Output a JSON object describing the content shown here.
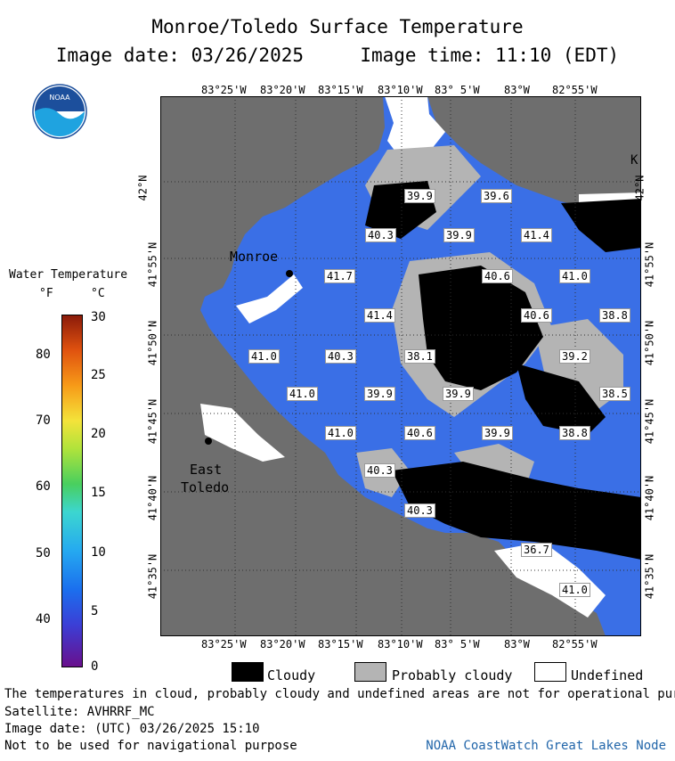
{
  "title": "Monroe/Toledo Surface Temperature",
  "subtitle": {
    "date_label": "Image date: 03/26/2025",
    "time_label": "Image time: 11:10 (EDT)"
  },
  "longitude_labels": [
    "83°25'W",
    "83°20'W",
    "83°15'W",
    "83°10'W",
    "83° 5'W",
    "83°W",
    "82°55'W"
  ],
  "latitude_labels": [
    "42°N",
    "41°55'N",
    "41°50'N",
    "41°45'N",
    "41°40'N",
    "41°35'N"
  ],
  "cities": {
    "monroe": "Monroe",
    "east_toledo_1": "East",
    "east_toledo_2": "Toledo"
  },
  "temperature_labels": [
    "39.9",
    "39.6",
    "40.3",
    "39.9",
    "41.4",
    "41.7",
    "40.6",
    "41.0",
    "41.4",
    "40.6",
    "38.8",
    "41.0",
    "40.3",
    "38.1",
    "39.2",
    "41.0",
    "39.9",
    "39.9",
    "38.5",
    "41.0",
    "40.6",
    "39.9",
    "38.8",
    "40.3",
    "40.3",
    "36.7",
    "41.0"
  ],
  "scale": {
    "title": "Water Temperature",
    "unit_f": "°F",
    "unit_c": "°C",
    "f_ticks": [
      "80",
      "70",
      "60",
      "50",
      "40"
    ],
    "c_ticks": [
      "30",
      "25",
      "20",
      "15",
      "10",
      "5",
      "0"
    ]
  },
  "legend": {
    "cloudy": "Cloudy",
    "probably_cloudy": "Probably cloudy",
    "undefined": "Undefined"
  },
  "footer": {
    "line1": "The temperatures in cloud, probably cloudy and undefined areas are not for operational pur",
    "line2": "Satellite: AVHRRF_MC",
    "line3": "Image date: (UTC) 03/26/2025  15:10",
    "line4": "Not to be used for navigational purpose",
    "credit": "NOAA CoastWatch Great Lakes Node"
  },
  "logo": {
    "text": "NOAA"
  },
  "colors": {
    "land": "#6e6e6e",
    "water": "#3a6fe6",
    "cloudy": "#000000",
    "probably_cloudy": "#b4b4b4",
    "undefined": "#ffffff"
  },
  "corner_text": "K"
}
